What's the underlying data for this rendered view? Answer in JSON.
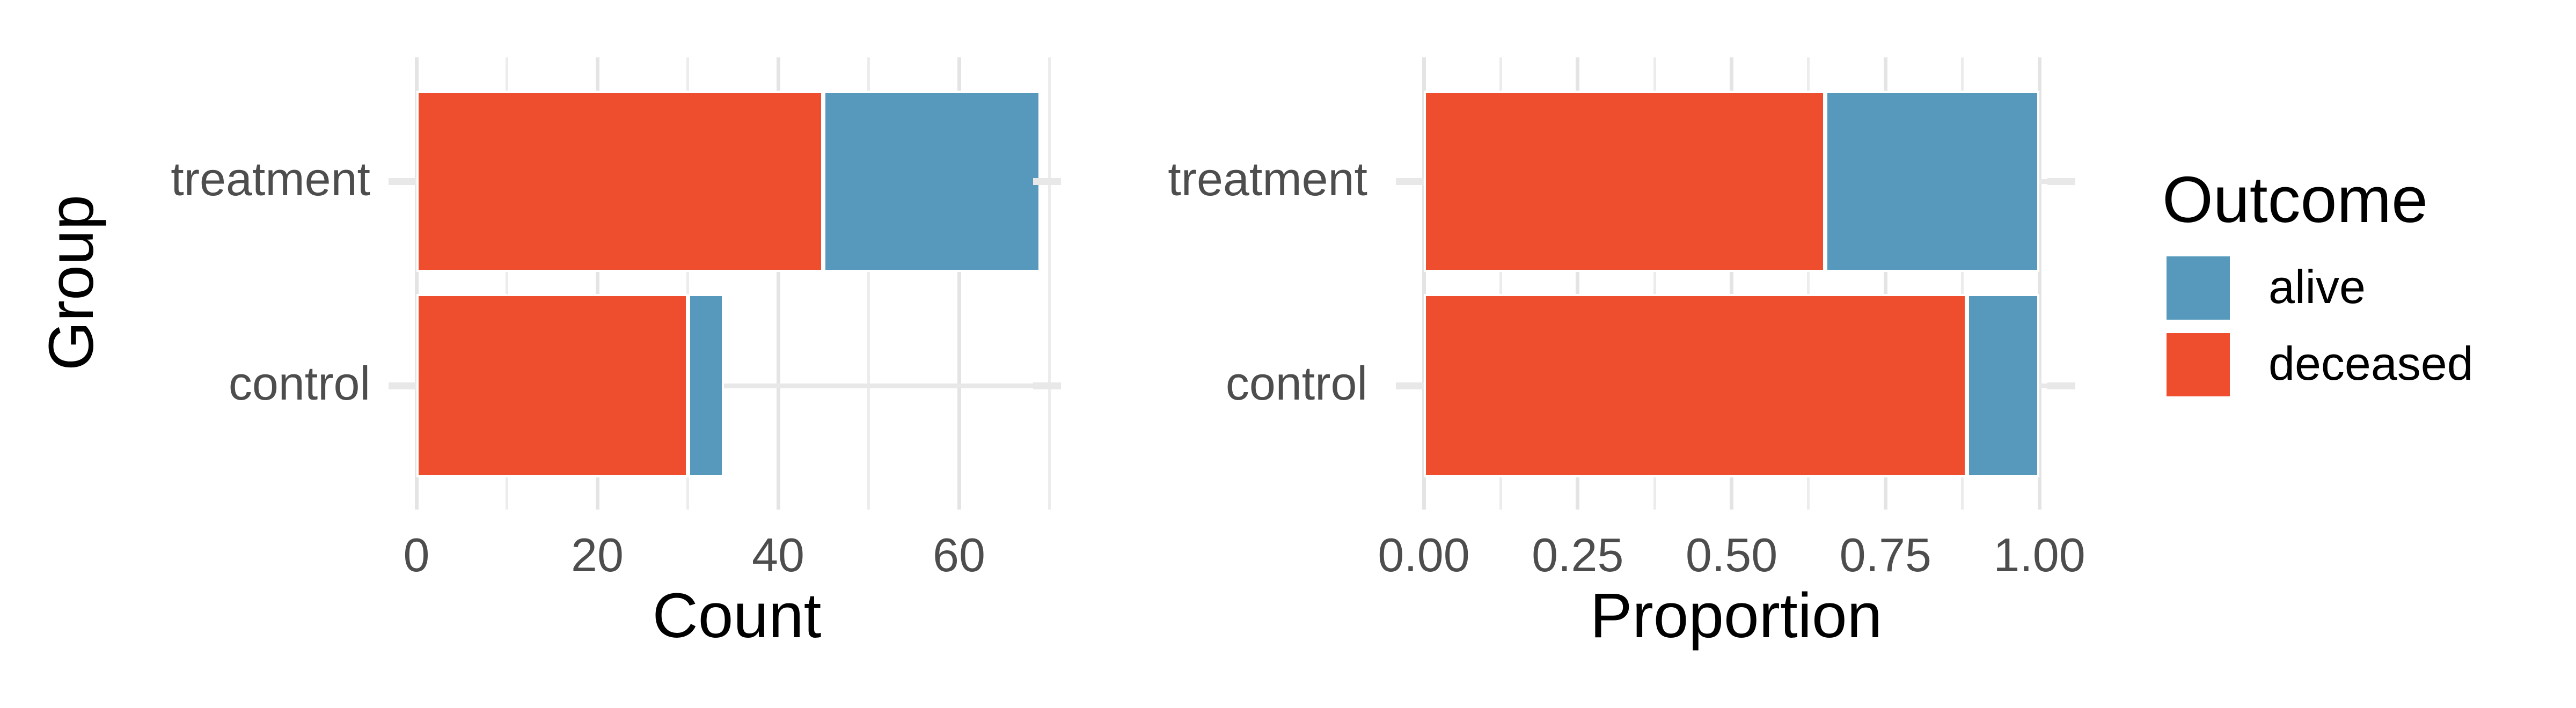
{
  "figure": {
    "background": "#ffffff"
  },
  "palette": {
    "alive": "#5699BC",
    "deceased": "#EE4D2E",
    "axis_text": "#4D4D4D",
    "title_text": "#000000",
    "grid_major": "#E4E4E4",
    "grid_minor": "#ECECEC",
    "tick": "#E8E8E8"
  },
  "legend": {
    "title": "Outcome",
    "items": [
      {
        "label": "alive",
        "color": "#5699BC"
      },
      {
        "label": "deceased",
        "color": "#EE4D2E"
      }
    ]
  },
  "chart_data": [
    {
      "type": "bar",
      "orientation": "horizontal",
      "stacked": true,
      "title": "",
      "xlabel": "Count",
      "ylabel": "Group",
      "categories": [
        "treatment",
        "control"
      ],
      "series": [
        {
          "name": "deceased",
          "color": "#EE4D2E",
          "values": [
            45,
            30
          ]
        },
        {
          "name": "alive",
          "color": "#5699BC",
          "values": [
            24,
            4
          ]
        }
      ],
      "totals": [
        69,
        34
      ],
      "xlim": [
        0,
        71
      ],
      "xticks": {
        "values": [
          0,
          20,
          40,
          60
        ],
        "labels": [
          "0",
          "20",
          "40",
          "60"
        ]
      },
      "minor_ticks": [
        10,
        30,
        50,
        70
      ],
      "grid": "on",
      "legend_position": "none"
    },
    {
      "type": "bar",
      "orientation": "horizontal",
      "stacked": true,
      "title": "",
      "xlabel": "Proportion",
      "ylabel": "",
      "categories": [
        "treatment",
        "control"
      ],
      "series": [
        {
          "name": "deceased",
          "color": "#EE4D2E",
          "values": [
            0.652,
            0.882
          ]
        },
        {
          "name": "alive",
          "color": "#5699BC",
          "values": [
            0.348,
            0.118
          ]
        }
      ],
      "xlim": [
        0,
        1.05
      ],
      "xticks": {
        "values": [
          0,
          0.25,
          0.5,
          0.75,
          1
        ],
        "labels": [
          "0.00",
          "0.25",
          "0.50",
          "0.75",
          "1.00"
        ]
      },
      "minor_ticks": [
        0.125,
        0.375,
        0.625,
        0.875
      ],
      "grid": "on",
      "legend_position": "right"
    }
  ]
}
